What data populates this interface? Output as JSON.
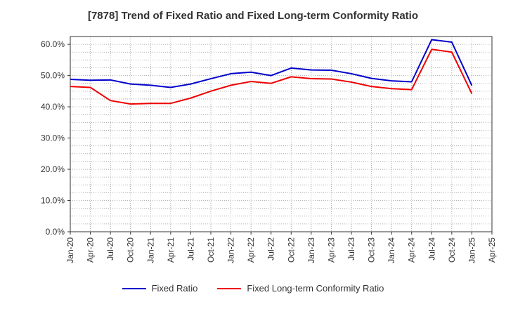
{
  "chart_data": {
    "type": "line",
    "title": "[7878]  Trend of Fixed Ratio and Fixed Long-term Conformity Ratio",
    "xlabel": "",
    "ylabel": "",
    "ylim": [
      0,
      62.5
    ],
    "y_ticks": [
      0,
      10,
      20,
      30,
      40,
      50,
      60
    ],
    "y_tick_labels": [
      "0.0%",
      "10.0%",
      "20.0%",
      "30.0%",
      "40.0%",
      "50.0%",
      "60.0%"
    ],
    "x_tick_labels": [
      "Jan-20",
      "Apr-20",
      "Jul-20",
      "Oct-20",
      "Jan-21",
      "Apr-21",
      "Jul-21",
      "Oct-21",
      "Jan-22",
      "Apr-22",
      "Jul-22",
      "Oct-22",
      "Jan-23",
      "Apr-23",
      "Jul-23",
      "Oct-23",
      "Jan-24",
      "Apr-24",
      "Jul-24",
      "Oct-24",
      "Jan-25",
      "Apr-25"
    ],
    "categories": [
      "Jan-20",
      "Apr-20",
      "Jul-20",
      "Oct-20",
      "Jan-21",
      "Apr-21",
      "Jul-21",
      "Oct-21",
      "Jan-22",
      "Apr-22",
      "Jul-22",
      "Oct-22",
      "Jan-23",
      "Apr-23",
      "Jul-23",
      "Oct-23",
      "Jan-24",
      "Apr-24",
      "Jul-24",
      "Oct-24",
      "Jan-25"
    ],
    "grid": true,
    "legend_position": "bottom",
    "series": [
      {
        "name": "Fixed Ratio",
        "color": "#0000cc",
        "values": [
          48.8,
          48.5,
          48.6,
          47.3,
          46.9,
          46.2,
          47.3,
          49.0,
          50.6,
          51.1,
          50.0,
          52.4,
          51.8,
          51.7,
          50.6,
          49.1,
          48.3,
          48.0,
          61.5,
          60.7,
          46.8
        ]
      },
      {
        "name": "Fixed Long-term Conformity Ratio",
        "color": "#ee0000",
        "values": [
          46.5,
          46.2,
          42.0,
          40.9,
          41.1,
          41.1,
          42.8,
          45.0,
          46.9,
          48.1,
          47.5,
          49.6,
          49.0,
          48.9,
          47.9,
          46.5,
          45.8,
          45.5,
          58.4,
          57.5,
          44.2
        ]
      }
    ]
  }
}
